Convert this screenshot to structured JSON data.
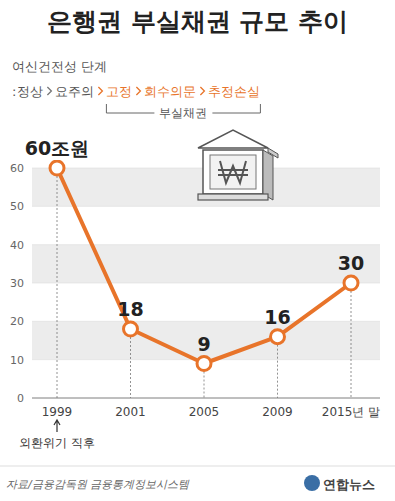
{
  "chart_data": {
    "type": "line",
    "title": "은행권 부실채권 규모 추이",
    "subtitle": "여신건전성 단계",
    "stage_prefix": ":",
    "stages": [
      {
        "text": "정상",
        "bad": false
      },
      {
        "text": "요주의",
        "bad": false
      },
      {
        "text": "고정",
        "bad": true
      },
      {
        "text": "회수의문",
        "bad": true
      },
      {
        "text": "추정손실",
        "bad": true
      }
    ],
    "bracket_label": "부실채권",
    "categories": [
      "1999",
      "2001",
      "2005",
      "2009",
      "2015년 말"
    ],
    "values": [
      60,
      18,
      9,
      16,
      30
    ],
    "value_labels": [
      "60조원",
      "18",
      "9",
      "16",
      "30"
    ],
    "data_labels": true,
    "color": "#e8742a",
    "marker": "circle",
    "ylim": [
      0,
      60
    ],
    "yticks": [
      0,
      10,
      20,
      30,
      40,
      50,
      60
    ],
    "grid": true,
    "annotations": [
      {
        "text": "외환위기 직후",
        "x": "1999"
      }
    ],
    "source": "자료/금융감독원 금융통계정보시스템",
    "credit": "연합뉴스"
  }
}
